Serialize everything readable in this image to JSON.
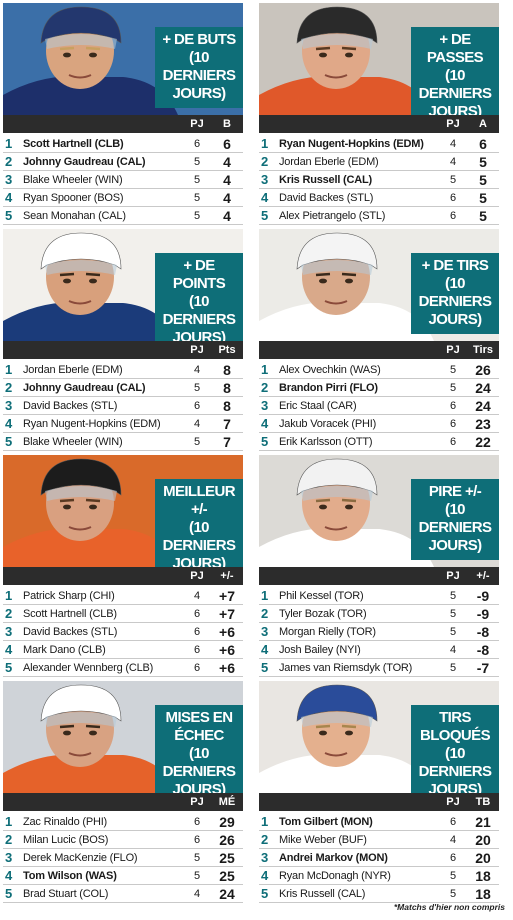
{
  "panels": [
    {
      "title_l1": "+ DE BUTS",
      "title_l2": "(10 DERNIERS JOURS)",
      "col_gp": "PJ",
      "col_stat": "B",
      "photo": {
        "bg": "#3b6fa8",
        "jersey": "#1d2f6a",
        "helmet": "#23376e",
        "skin": "#d9a47f",
        "hair": "#c9a060"
      },
      "rows": [
        {
          "rank": "1",
          "name": "Scott Hartnell (CLB)",
          "gp": "6",
          "stat": "6"
        },
        {
          "rank": "2",
          "name": "Johnny Gaudreau (CAL)",
          "gp": "5",
          "stat": "4"
        },
        {
          "rank": "3",
          "name": "Blake Wheeler (WIN)",
          "gp": "5",
          "stat": "4"
        },
        {
          "rank": "4",
          "name": "Ryan Spooner (BOS)",
          "gp": "5",
          "stat": "4"
        },
        {
          "rank": "5",
          "name": "Sean Monahan (CAL)",
          "gp": "5",
          "stat": "4"
        }
      ]
    },
    {
      "title_l1": "+ DE PASSES",
      "title_l2": "(10 DERNIERS JOURS)",
      "col_gp": "PJ",
      "col_stat": "A",
      "photo": {
        "bg": "#c9c4bd",
        "jersey": "#e0582a",
        "helmet": "#2a2a2a",
        "skin": "#e0a888",
        "hair": "#5a3a22"
      },
      "rows": [
        {
          "rank": "1",
          "name": "Ryan Nugent-Hopkins (EDM)",
          "gp": "4",
          "stat": "6"
        },
        {
          "rank": "2",
          "name": "Jordan Eberle (EDM)",
          "gp": "4",
          "stat": "5"
        },
        {
          "rank": "3",
          "name": "Kris Russell (CAL)",
          "gp": "5",
          "stat": "5"
        },
        {
          "rank": "4",
          "name": "David Backes (STL)",
          "gp": "6",
          "stat": "5"
        },
        {
          "rank": "5",
          "name": "Alex Pietrangelo (STL)",
          "gp": "6",
          "stat": "5"
        }
      ]
    },
    {
      "title_l1": "+ DE POINTS",
      "title_l2": "(10 DERNIERS JOURS)",
      "col_gp": "PJ",
      "col_stat": "Pts",
      "photo": {
        "bg": "#f2f0ec",
        "jersey": "#1b3b7a",
        "helmet": "#ffffff",
        "skin": "#d8a07c",
        "hair": "#3a2a1c"
      },
      "rows": [
        {
          "rank": "1",
          "name": "Jordan Eberle (EDM)",
          "gp": "4",
          "stat": "8"
        },
        {
          "rank": "2",
          "name": "Johnny Gaudreau (CAL)",
          "gp": "5",
          "stat": "8"
        },
        {
          "rank": "3",
          "name": "David Backes (STL)",
          "gp": "6",
          "stat": "8"
        },
        {
          "rank": "4",
          "name": "Ryan Nugent-Hopkins (EDM)",
          "gp": "4",
          "stat": "7"
        },
        {
          "rank": "5",
          "name": "Blake Wheeler (WIN)",
          "gp": "5",
          "stat": "7"
        }
      ]
    },
    {
      "title_l1": "+ DE TIRS",
      "title_l2": "(10 DERNIERS JOURS)",
      "col_gp": "PJ",
      "col_stat": "Tirs",
      "photo": {
        "bg": "#ecebe7",
        "jersey": "#ffffff",
        "helmet": "#f4f4f4",
        "skin": "#d9a98a",
        "hair": "#3a2a1c"
      },
      "rows": [
        {
          "rank": "1",
          "name": "Alex Ovechkin (WAS)",
          "gp": "5",
          "stat": "26"
        },
        {
          "rank": "2",
          "name": "Brandon Pirri (FLO)",
          "gp": "5",
          "stat": "24"
        },
        {
          "rank": "3",
          "name": "Eric Staal (CAR)",
          "gp": "6",
          "stat": "24"
        },
        {
          "rank": "4",
          "name": "Jakub Voracek (PHI)",
          "gp": "6",
          "stat": "23"
        },
        {
          "rank": "5",
          "name": "Erik Karlsson (OTT)",
          "gp": "6",
          "stat": "22"
        }
      ]
    },
    {
      "title_l1": "MEILLEUR +/-",
      "title_l2": "(10 DERNIERS JOURS)",
      "col_gp": "PJ",
      "col_stat": "+/-",
      "photo": {
        "bg": "#d96a2a",
        "jersey": "#e8622a",
        "helmet": "#1c1c1c",
        "skin": "#d9a080",
        "hair": "#5a3a22"
      },
      "rows": [
        {
          "rank": "1",
          "name": "Patrick Sharp (CHI)",
          "gp": "4",
          "stat": "+7"
        },
        {
          "rank": "2",
          "name": "Scott Hartnell (CLB)",
          "gp": "6",
          "stat": "+7"
        },
        {
          "rank": "3",
          "name": "David Backes (STL)",
          "gp": "6",
          "stat": "+6"
        },
        {
          "rank": "4",
          "name": "Mark Dano (CLB)",
          "gp": "6",
          "stat": "+6"
        },
        {
          "rank": "5",
          "name": "Alexander Wennberg (CLB)",
          "gp": "6",
          "stat": "+6"
        }
      ]
    },
    {
      "title_l1": "PIRE +/-",
      "title_l2": "(10 DERNIERS JOURS)",
      "col_gp": "PJ",
      "col_stat": "+/-",
      "photo": {
        "bg": "#dcdad6",
        "jersey": "#ffffff",
        "helmet": "#f2f2f2",
        "skin": "#e2ac8c",
        "hair": "#8a6a40"
      },
      "rows": [
        {
          "rank": "1",
          "name": "Phil Kessel (TOR)",
          "gp": "5",
          "stat": "-9"
        },
        {
          "rank": "2",
          "name": "Tyler Bozak (TOR)",
          "gp": "5",
          "stat": "-9"
        },
        {
          "rank": "3",
          "name": "Morgan Rielly (TOR)",
          "gp": "5",
          "stat": "-8"
        },
        {
          "rank": "4",
          "name": "Josh Bailey (NYI)",
          "gp": "4",
          "stat": "-8"
        },
        {
          "rank": "5",
          "name": "James van Riemsdyk (TOR)",
          "gp": "5",
          "stat": "-7"
        }
      ]
    },
    {
      "title_l1": "MISES EN ÉCHEC",
      "title_l2": "(10 DERNIERS JOURS)",
      "col_gp": "PJ",
      "col_stat": "MÉ",
      "photo": {
        "bg": "#cfd3d8",
        "jersey": "#e5622a",
        "helmet": "#ffffff",
        "skin": "#d8a282",
        "hair": "#3a2a1c"
      },
      "rows": [
        {
          "rank": "1",
          "name": "Zac Rinaldo (PHI)",
          "gp": "6",
          "stat": "29"
        },
        {
          "rank": "2",
          "name": "Milan Lucic (BOS)",
          "gp": "6",
          "stat": "26"
        },
        {
          "rank": "3",
          "name": "Derek MacKenzie (FLO)",
          "gp": "5",
          "stat": "25"
        },
        {
          "rank": "4",
          "name": "Tom Wilson (WAS)",
          "gp": "5",
          "stat": "25"
        },
        {
          "rank": "5",
          "name": "Brad Stuart (COL)",
          "gp": "4",
          "stat": "24"
        }
      ]
    },
    {
      "title_l1": "TIRS BLOQUÉS",
      "title_l2": "(10 DERNIERS JOURS)",
      "col_gp": "PJ",
      "col_stat": "TB",
      "photo": {
        "bg": "#e9e6e2",
        "jersey": "#ffffff",
        "helmet": "#2a4c9a",
        "skin": "#e4b08e",
        "hair": "#a8864e"
      },
      "rows": [
        {
          "rank": "1",
          "name": "Tom Gilbert (MON)",
          "gp": "6",
          "stat": "21"
        },
        {
          "rank": "2",
          "name": "Mike Weber (BUF)",
          "gp": "4",
          "stat": "20"
        },
        {
          "rank": "3",
          "name": "Andrei Markov (MON)",
          "gp": "6",
          "stat": "20"
        },
        {
          "rank": "4",
          "name": "Ryan McDonagh (NYR)",
          "gp": "5",
          "stat": "18"
        },
        {
          "rank": "5",
          "name": "Kris Russell (CAL)",
          "gp": "5",
          "stat": "18"
        }
      ]
    }
  ],
  "bold_names": [
    [
      "Scott Hartnell (CLB)",
      "Johnny Gaudreau (CAL)"
    ],
    [
      "Ryan Nugent-Hopkins (EDM)",
      "Kris Russell (CAL)"
    ],
    [
      "Johnny Gaudreau (CAL)"
    ],
    [
      "Brandon Pirri (FLO)"
    ],
    [],
    [],
    [
      "Tom Wilson (WAS)"
    ],
    [
      "Tom Gilbert (MON)",
      "Andrei Markov (MON)"
    ]
  ],
  "footnote": "*Matchs d'hier non compris"
}
